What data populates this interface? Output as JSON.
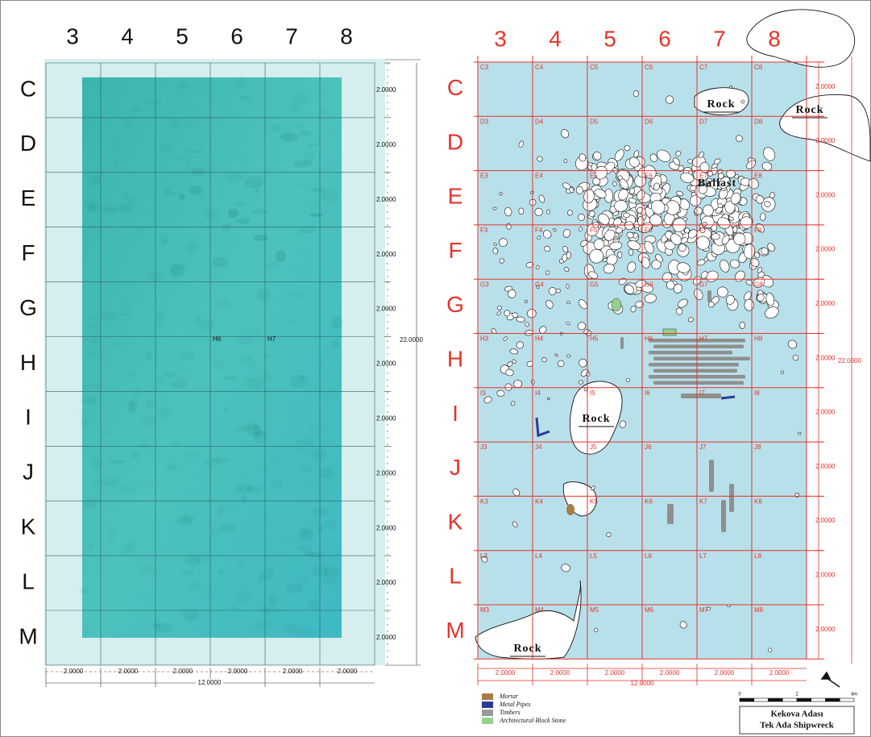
{
  "left_panel": {
    "columns": [
      "3",
      "4",
      "5",
      "6",
      "7",
      "8"
    ],
    "rows": [
      "C",
      "D",
      "E",
      "F",
      "G",
      "H",
      "I",
      "J",
      "K",
      "L",
      "M"
    ],
    "cell_labels": [
      "H6",
      "H7"
    ],
    "row_dimensions": [
      "2.0000",
      "2.0000",
      "2.0000",
      "2.0000",
      "2.0000",
      "2.0000",
      "2.0000",
      "2.0000",
      "2.0000",
      "2.0000",
      "2.0000"
    ],
    "total_height": "22.0000",
    "column_dimensions": [
      "2.0000",
      "2.0000",
      "2.0000",
      "2.0000",
      "2.0000",
      "2.0000"
    ],
    "total_width": "12.0000"
  },
  "right_panel": {
    "columns": [
      "3",
      "4",
      "5",
      "6",
      "7",
      "8"
    ],
    "rows": [
      "C",
      "D",
      "E",
      "F",
      "G",
      "H",
      "I",
      "J",
      "K",
      "L",
      "M"
    ],
    "cell_labels": [
      [
        "C3",
        "C4",
        "C5",
        "C6",
        "C7",
        "C8"
      ],
      [
        "D3",
        "D4",
        "D5",
        "D6",
        "D7",
        "D8"
      ],
      [
        "E3",
        "E4",
        "E5",
        "E6",
        "E7",
        "E8"
      ],
      [
        "F3",
        "F4",
        "F5",
        "F6",
        "F7",
        "F8"
      ],
      [
        "G3",
        "G4",
        "G5",
        "G6",
        "G7",
        "G8"
      ],
      [
        "H3",
        "H4",
        "H5",
        "H6",
        "H7",
        "H8"
      ],
      [
        "I3",
        "I4",
        "I5",
        "I6",
        "I7",
        "I8"
      ],
      [
        "J3",
        "J4",
        "J5",
        "J6",
        "J7",
        "J8"
      ],
      [
        "K3",
        "K4",
        "K5",
        "K6",
        "K7",
        "K8"
      ],
      [
        "L3",
        "L4",
        "L5",
        "L6",
        "L7",
        "L8"
      ],
      [
        "M3",
        "M4",
        "M5",
        "M6",
        "M7",
        "M8"
      ]
    ],
    "row_dimensions": [
      "2.0000",
      "2.0000",
      "2.0000",
      "2.0000",
      "2.0000",
      "2.0000",
      "2.0000",
      "2.0000",
      "2.0000",
      "2.0000",
      "2.0000"
    ],
    "total_height": "22.0000",
    "column_dimensions": [
      "2.0000",
      "2.0000",
      "2.0000",
      "2.0000",
      "2.0000",
      "2.0000"
    ],
    "total_width": "12.0000",
    "annotations": [
      "Rock",
      "Rock",
      "Ballast",
      "Rock",
      "Rock"
    ]
  },
  "legend": [
    {
      "label": "Mortar",
      "color": "#a97c42"
    },
    {
      "label": "Metal Pipes",
      "color": "#2b3a94"
    },
    {
      "label": "Timbers",
      "color": "#9a9a9a"
    },
    {
      "label": "Architectural Block Stone",
      "color": "#93d18f"
    }
  ],
  "scale_bar": {
    "labels": [
      "0",
      "2",
      "4m"
    ]
  },
  "title": {
    "lines": [
      "Kekova Adası",
      "Tek Ada Shipwreck"
    ]
  }
}
